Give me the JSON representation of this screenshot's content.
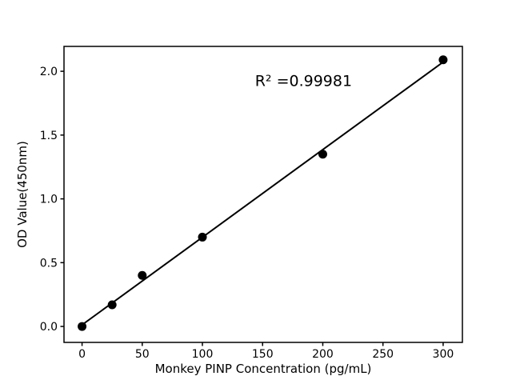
{
  "figure": {
    "background": "#ffffff"
  },
  "chart_data": {
    "type": "scatter",
    "title": "",
    "xlabel": "Monkey PINP Concentration (pg/mL)",
    "ylabel": "OD Value(450nm)",
    "x": [
      0,
      25,
      50,
      100,
      200,
      300
    ],
    "y": [
      0.0,
      0.17,
      0.4,
      0.7,
      1.35,
      2.09
    ],
    "fit_line": {
      "slope": 0.006867,
      "intercept": 0.0125,
      "x_range": [
        0,
        300
      ]
    },
    "r_squared_value": 0.99981,
    "r_squared_label": "R² =0.99981",
    "annotation_pos": {
      "x": 184,
      "y": 1.93
    },
    "xticks": [
      0,
      50,
      100,
      150,
      200,
      250,
      300
    ],
    "xtick_labels": [
      "0",
      "50",
      "100",
      "150",
      "200",
      "250",
      "300"
    ],
    "yticks": [
      0,
      0.5,
      1,
      1.5,
      2
    ],
    "ytick_labels": [
      "0.0",
      "0.5",
      "1.0",
      "1.5",
      "2.0"
    ],
    "xlim": [
      -15,
      316
    ],
    "ylim": [
      -0.125,
      2.195
    ],
    "grid": false,
    "legend_position": "none",
    "marker_color": "#000000",
    "line_color": "#000000",
    "axis_color": "#000000",
    "background_color": "#ffffff"
  }
}
